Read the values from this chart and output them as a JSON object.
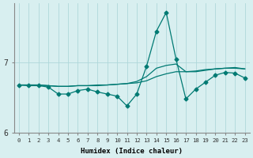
{
  "xlabel": "Humidex (Indice chaleur)",
  "x": [
    0,
    1,
    2,
    3,
    4,
    5,
    6,
    7,
    8,
    9,
    10,
    11,
    12,
    13,
    14,
    15,
    16,
    17,
    18,
    19,
    20,
    21,
    22,
    23
  ],
  "line_flat": [
    6.68,
    6.68,
    6.68,
    6.67,
    6.66,
    6.66,
    6.67,
    6.67,
    6.67,
    6.68,
    6.69,
    6.7,
    6.71,
    6.74,
    6.8,
    6.84,
    6.87,
    6.87,
    6.88,
    6.9,
    6.91,
    6.92,
    6.92,
    6.91
  ],
  "line_trend": [
    6.68,
    6.68,
    6.68,
    6.67,
    6.66,
    6.66,
    6.67,
    6.67,
    6.68,
    6.68,
    6.69,
    6.7,
    6.73,
    6.8,
    6.92,
    6.96,
    6.98,
    6.87,
    6.87,
    6.89,
    6.91,
    6.92,
    6.93,
    6.91
  ],
  "line_zigzag": [
    6.68,
    6.67,
    6.67,
    6.65,
    6.55,
    6.55,
    6.6,
    6.62,
    6.58,
    6.55,
    6.52,
    6.38,
    6.55,
    6.95,
    7.45,
    7.72,
    7.05,
    6.48,
    6.62,
    6.72,
    6.82,
    6.86,
    6.85,
    6.78
  ],
  "color": "#007a73",
  "bg_color": "#d8eff0",
  "grid_color": "#afd8da",
  "ylim_low": 6.25,
  "ylim_high": 7.85,
  "ytick_6": 6,
  "ytick_7": 7,
  "xticks": [
    0,
    1,
    2,
    3,
    4,
    5,
    6,
    7,
    8,
    9,
    10,
    11,
    12,
    13,
    14,
    15,
    16,
    17,
    18,
    19,
    20,
    21,
    22,
    23
  ]
}
